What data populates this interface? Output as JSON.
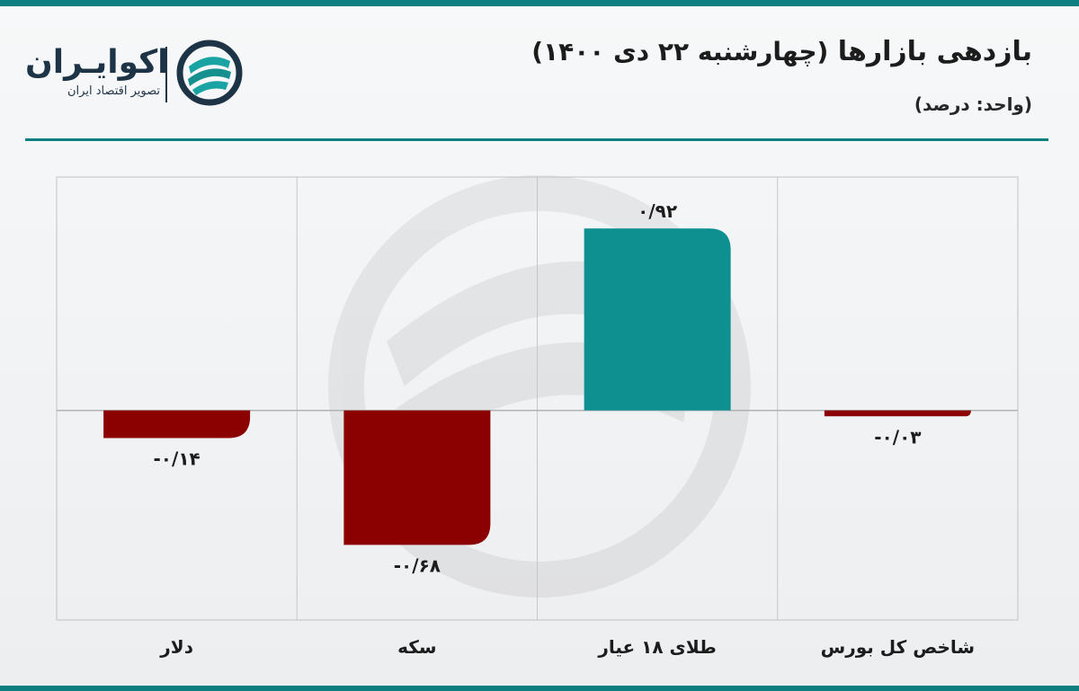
{
  "header": {
    "title_main": "بازدهی بازارها",
    "title_sub": "(چهارشنبه ۲۲ دی ۱۴۰۰)",
    "unit": "(واحد: درصد)"
  },
  "brand": {
    "name": "اکوایـران",
    "tagline": "تصویر اقتصاد ایران",
    "logo_icon": "ecoiran-logo-icon"
  },
  "colors": {
    "accent": "#0e7f80",
    "positive": "#0f9090",
    "negative": "#8b0000"
  },
  "chart_data": {
    "type": "bar",
    "categories": [
      "شاخص کل بورس",
      "طلای ۱۸ عیار",
      "سکه",
      "دلار"
    ],
    "values": [
      -0.03,
      0.92,
      -0.68,
      -0.14
    ],
    "value_labels": [
      "-۰/۰۳",
      "۰/۹۲",
      "-۰/۶۸",
      "-۰/۱۴"
    ],
    "title": "بازدهی بازارها",
    "ylabel": "",
    "xlabel": "",
    "ylim": [
      -1.06,
      1.18
    ],
    "grid": true,
    "legend": "none"
  }
}
